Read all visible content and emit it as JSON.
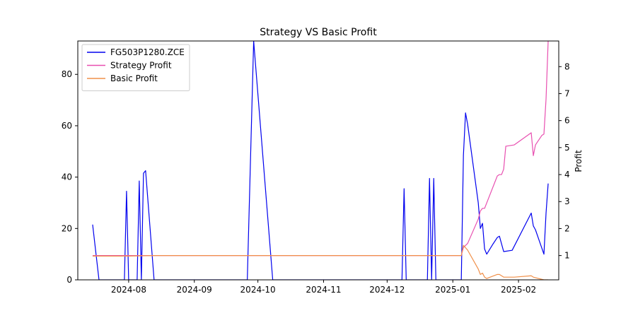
{
  "chart_data": {
    "type": "line",
    "title": "Strategy VS Basic Profit",
    "xlabel": "",
    "ylabel_left": "",
    "ylabel_right": "Profit",
    "x_ticks": [
      "2024-08",
      "2024-09",
      "2024-10",
      "2024-11",
      "2024-12",
      "2025-01",
      "2025-02"
    ],
    "y_left_ticks": [
      0,
      20,
      40,
      60,
      80
    ],
    "y_right_ticks": [
      1,
      2,
      3,
      4,
      5,
      6,
      7,
      8
    ],
    "y_left_range": [
      0,
      93
    ],
    "y_right_range": [
      0.1,
      8.95
    ],
    "x_range": [
      "2024-07-08",
      "2025-02-20"
    ],
    "legend_position": "upper-left",
    "grid": false,
    "series": [
      {
        "name": "FG503P1280.ZCE",
        "color": "#0000ee",
        "axis": "left",
        "points": [
          [
            "2024-07-15",
            21.5
          ],
          [
            "2024-07-18",
            0
          ],
          [
            "2024-07-30",
            0
          ],
          [
            "2024-07-31",
            34.5
          ],
          [
            "2024-08-01",
            0
          ],
          [
            "2024-08-05",
            0
          ],
          [
            "2024-08-06",
            38.5
          ],
          [
            "2024-08-07",
            0
          ],
          [
            "2024-08-08",
            41.5
          ],
          [
            "2024-08-09",
            42.5
          ],
          [
            "2024-08-13",
            0
          ],
          [
            "2024-09-26",
            0
          ],
          [
            "2024-09-29",
            93
          ],
          [
            "2024-10-08",
            0
          ],
          [
            "2024-12-08",
            0
          ],
          [
            "2024-12-09",
            35.5
          ],
          [
            "2024-12-10",
            0
          ],
          [
            "2024-12-20",
            0
          ],
          [
            "2024-12-21",
            39.5
          ],
          [
            "2024-12-22",
            0
          ],
          [
            "2024-12-23",
            39.5
          ],
          [
            "2024-12-24",
            0
          ],
          [
            "2025-01-05",
            0
          ],
          [
            "2025-01-06",
            48.5
          ],
          [
            "2025-01-07",
            65
          ],
          [
            "2025-01-08",
            60.5
          ],
          [
            "2025-01-13",
            30
          ],
          [
            "2025-01-14",
            20
          ],
          [
            "2025-01-15",
            22
          ],
          [
            "2025-01-16",
            12
          ],
          [
            "2025-01-17",
            10
          ],
          [
            "2025-01-20",
            14
          ],
          [
            "2025-01-22",
            16.5
          ],
          [
            "2025-01-23",
            17
          ],
          [
            "2025-01-25",
            11
          ],
          [
            "2025-01-29",
            11.5
          ],
          [
            "2025-02-07",
            26
          ],
          [
            "2025-02-08",
            21
          ],
          [
            "2025-02-09",
            19.5
          ],
          [
            "2025-02-13",
            10
          ],
          [
            "2025-02-14",
            26
          ],
          [
            "2025-02-15",
            37.5
          ]
        ]
      },
      {
        "name": "Strategy Profit",
        "color": "#e84fb0",
        "axis": "right",
        "points": [
          [
            "2024-07-15",
            1.0
          ],
          [
            "2025-01-05",
            1.0
          ],
          [
            "2025-01-06",
            1.3
          ],
          [
            "2025-01-08",
            1.45
          ],
          [
            "2025-01-13",
            2.35
          ],
          [
            "2025-01-14",
            2.65
          ],
          [
            "2025-01-15",
            2.75
          ],
          [
            "2025-01-16",
            2.75
          ],
          [
            "2025-01-22",
            3.95
          ],
          [
            "2025-01-23",
            4.0
          ],
          [
            "2025-01-24",
            4.0
          ],
          [
            "2025-01-25",
            4.2
          ],
          [
            "2025-01-26",
            5.05
          ],
          [
            "2025-01-30",
            5.1
          ],
          [
            "2025-02-07",
            5.55
          ],
          [
            "2025-02-08",
            4.7
          ],
          [
            "2025-02-09",
            5.1
          ],
          [
            "2025-02-12",
            5.45
          ],
          [
            "2025-02-13",
            5.5
          ],
          [
            "2025-02-14",
            6.8
          ],
          [
            "2025-02-15",
            8.95
          ]
        ]
      },
      {
        "name": "Basic Profit",
        "color": "#f0904a",
        "axis": "right",
        "points": [
          [
            "2024-07-15",
            0.98
          ],
          [
            "2024-08-01",
            0.98
          ],
          [
            "2024-08-13",
            1.0
          ],
          [
            "2025-01-05",
            1.0
          ],
          [
            "2025-01-06",
            1.38
          ],
          [
            "2025-01-08",
            1.2
          ],
          [
            "2025-01-13",
            0.5
          ],
          [
            "2025-01-14",
            0.3
          ],
          [
            "2025-01-15",
            0.35
          ],
          [
            "2025-01-16",
            0.2
          ],
          [
            "2025-01-17",
            0.15
          ],
          [
            "2025-01-22",
            0.3
          ],
          [
            "2025-01-23",
            0.3
          ],
          [
            "2025-01-25",
            0.2
          ],
          [
            "2025-01-30",
            0.2
          ],
          [
            "2025-02-07",
            0.25
          ],
          [
            "2025-02-08",
            0.2
          ],
          [
            "2025-02-13",
            0.1
          ],
          [
            "2025-02-15",
            0.1
          ]
        ]
      }
    ]
  }
}
